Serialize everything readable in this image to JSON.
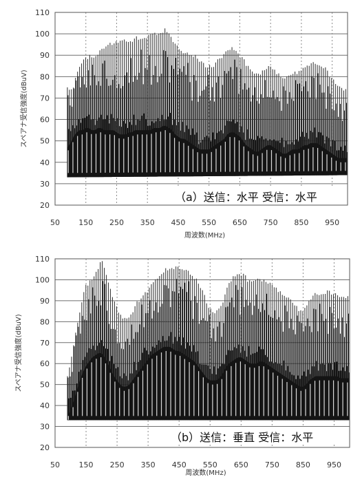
{
  "chart_data": [
    {
      "type": "area",
      "title": "（a）送信：水平 受信：水平",
      "xlabel": "周波数(MHz)",
      "ylabel": "スペアナ受信強度(dBuV)",
      "xlim": [
        50,
        1000
      ],
      "ylim": [
        20,
        110
      ],
      "xticks": [
        50,
        150,
        250,
        350,
        450,
        550,
        650,
        750,
        850,
        950
      ],
      "yticks": [
        20,
        30,
        40,
        50,
        60,
        70,
        80,
        90,
        100,
        110
      ],
      "grid": {
        "horizontal": "solid",
        "vertical": "dashed"
      },
      "bar_color": "#141414",
      "series": [
        {
          "role": "peak",
          "x": [
            90,
            100,
            110,
            120,
            130,
            140,
            150,
            160,
            170,
            180,
            190,
            200,
            210,
            220,
            230,
            240,
            250,
            260,
            270,
            280,
            290,
            300,
            310,
            320,
            330,
            340,
            350,
            360,
            370,
            380,
            390,
            400,
            410,
            420,
            430,
            440,
            450,
            460,
            470,
            480,
            490,
            500,
            510,
            520,
            530,
            540,
            550,
            560,
            570,
            580,
            590,
            600,
            610,
            620,
            630,
            640,
            650,
            660,
            670,
            680,
            690,
            700,
            710,
            720,
            730,
            740,
            750,
            760,
            770,
            780,
            790,
            800,
            810,
            820,
            830,
            840,
            850,
            860,
            870,
            880,
            890,
            900,
            910,
            920,
            930,
            940,
            950,
            960,
            970,
            980,
            990,
            1000
          ],
          "values": [
            75,
            75,
            76,
            82,
            86,
            88,
            89,
            91,
            91,
            90,
            92,
            93,
            94,
            95,
            96,
            96,
            97,
            97,
            98,
            97,
            98,
            98,
            99,
            99,
            99,
            99,
            100,
            100,
            101,
            101,
            102,
            102,
            103,
            102,
            99,
            96,
            94,
            93,
            92,
            92,
            92,
            91,
            90,
            88,
            87,
            86,
            86,
            86,
            87,
            89,
            90,
            92,
            93,
            94,
            94,
            93,
            91,
            89,
            87,
            85,
            83,
            82,
            82,
            83,
            84,
            85,
            85,
            84,
            83,
            82,
            81,
            81,
            82,
            83,
            83,
            83,
            84,
            85,
            86,
            87,
            87,
            87,
            87,
            86,
            84,
            82,
            80,
            78,
            77,
            76,
            75,
            74
          ]
        },
        {
          "role": "body",
          "x": [
            90,
            100,
            110,
            120,
            130,
            140,
            150,
            160,
            170,
            180,
            190,
            200,
            210,
            220,
            230,
            240,
            250,
            260,
            270,
            280,
            290,
            300,
            310,
            320,
            330,
            340,
            350,
            360,
            370,
            380,
            390,
            400,
            410,
            420,
            430,
            440,
            450,
            460,
            470,
            480,
            490,
            500,
            510,
            520,
            530,
            540,
            550,
            560,
            570,
            580,
            590,
            600,
            610,
            620,
            630,
            640,
            650,
            660,
            670,
            680,
            690,
            700,
            710,
            720,
            730,
            740,
            750,
            760,
            770,
            780,
            790,
            800,
            810,
            820,
            830,
            840,
            850,
            860,
            870,
            880,
            890,
            900,
            910,
            920,
            930,
            940,
            950,
            960,
            970,
            980,
            990,
            1000
          ],
          "values": [
            55,
            57,
            60,
            62,
            63,
            63,
            64,
            64,
            63,
            63,
            64,
            64,
            63,
            63,
            63,
            63,
            62,
            61,
            61,
            61,
            62,
            62,
            63,
            63,
            63,
            63,
            63,
            63,
            64,
            64,
            64,
            65,
            65,
            64,
            63,
            61,
            60,
            59,
            59,
            58,
            57,
            56,
            55,
            54,
            54,
            54,
            54,
            55,
            56,
            57,
            58,
            59,
            61,
            62,
            62,
            61,
            60,
            58,
            56,
            55,
            54,
            53,
            53,
            54,
            55,
            56,
            56,
            55,
            54,
            53,
            52,
            52,
            53,
            54,
            54,
            54,
            55,
            56,
            56,
            57,
            57,
            57,
            56,
            55,
            54,
            53,
            52,
            51,
            50,
            50,
            50,
            50
          ]
        },
        {
          "role": "floor",
          "x": [
            90,
            1000
          ],
          "values": [
            33,
            34
          ]
        }
      ]
    },
    {
      "type": "area",
      "title": "（b）送信：垂直 受信：水平",
      "xlabel": "周波数(MHz)",
      "ylabel": "スペアナ受信強度(dBuV)",
      "xlim": [
        50,
        1000
      ],
      "ylim": [
        20,
        110
      ],
      "xticks": [
        50,
        150,
        250,
        350,
        450,
        550,
        650,
        750,
        850,
        950
      ],
      "yticks": [
        20,
        30,
        40,
        50,
        60,
        70,
        80,
        90,
        100,
        110
      ],
      "grid": {
        "horizontal": "solid",
        "vertical": "dashed"
      },
      "bar_color": "#141414",
      "series": [
        {
          "role": "peak",
          "x": [
            90,
            100,
            110,
            120,
            130,
            140,
            150,
            160,
            170,
            180,
            190,
            200,
            210,
            220,
            230,
            240,
            250,
            260,
            270,
            280,
            290,
            300,
            310,
            320,
            330,
            340,
            350,
            360,
            370,
            380,
            390,
            400,
            410,
            420,
            430,
            440,
            450,
            460,
            470,
            480,
            490,
            500,
            510,
            520,
            530,
            540,
            550,
            560,
            570,
            580,
            590,
            600,
            610,
            620,
            630,
            640,
            650,
            660,
            670,
            680,
            690,
            700,
            710,
            720,
            730,
            740,
            750,
            760,
            770,
            780,
            790,
            800,
            810,
            820,
            830,
            840,
            850,
            860,
            870,
            880,
            890,
            900,
            910,
            920,
            930,
            940,
            950,
            960,
            970,
            980,
            990,
            1000
          ],
          "values": [
            54,
            62,
            70,
            78,
            86,
            93,
            98,
            100,
            102,
            104,
            107,
            110,
            106,
            100,
            95,
            91,
            87,
            84,
            82,
            82,
            84,
            86,
            89,
            91,
            93,
            95,
            96,
            98,
            100,
            102,
            104,
            105,
            106,
            107,
            107,
            107,
            106,
            106,
            106,
            105,
            104,
            102,
            100,
            97,
            94,
            90,
            87,
            86,
            86,
            87,
            90,
            95,
            99,
            101,
            103,
            104,
            104,
            103,
            101,
            100,
            100,
            101,
            101,
            101,
            100,
            99,
            98,
            97,
            96,
            95,
            94,
            93,
            92,
            90,
            88,
            86,
            86,
            88,
            91,
            93,
            94,
            94,
            95,
            95,
            95,
            95,
            94,
            94,
            93,
            93,
            93,
            92
          ]
        },
        {
          "role": "body",
          "x": [
            90,
            100,
            110,
            120,
            130,
            140,
            150,
            160,
            170,
            180,
            190,
            200,
            210,
            220,
            230,
            240,
            250,
            260,
            270,
            280,
            290,
            300,
            310,
            320,
            330,
            340,
            350,
            360,
            370,
            380,
            390,
            400,
            410,
            420,
            430,
            440,
            450,
            460,
            470,
            480,
            490,
            500,
            510,
            520,
            530,
            540,
            550,
            560,
            570,
            580,
            590,
            600,
            610,
            620,
            630,
            640,
            650,
            660,
            670,
            680,
            690,
            700,
            710,
            720,
            730,
            740,
            750,
            760,
            770,
            780,
            790,
            800,
            810,
            820,
            830,
            840,
            850,
            860,
            870,
            880,
            890,
            900,
            910,
            920,
            930,
            940,
            950,
            960,
            970,
            980,
            990,
            1000
          ],
          "values": [
            42,
            46,
            50,
            55,
            60,
            64,
            67,
            69,
            71,
            72,
            73,
            73,
            71,
            68,
            65,
            62,
            60,
            58,
            57,
            57,
            58,
            60,
            62,
            64,
            66,
            68,
            70,
            72,
            73,
            74,
            75,
            76,
            76,
            76,
            75,
            74,
            74,
            73,
            72,
            71,
            70,
            69,
            67,
            65,
            63,
            61,
            60,
            60,
            60,
            61,
            63,
            66,
            68,
            69,
            70,
            71,
            71,
            70,
            69,
            68,
            68,
            68,
            69,
            69,
            68,
            67,
            66,
            65,
            64,
            63,
            62,
            61,
            60,
            59,
            58,
            57,
            57,
            58,
            60,
            61,
            62,
            62,
            62,
            62,
            62,
            62,
            62,
            62,
            61,
            61,
            61,
            61
          ]
        },
        {
          "role": "floor",
          "x": [
            90,
            1000
          ],
          "values": [
            33,
            33
          ]
        }
      ]
    }
  ]
}
